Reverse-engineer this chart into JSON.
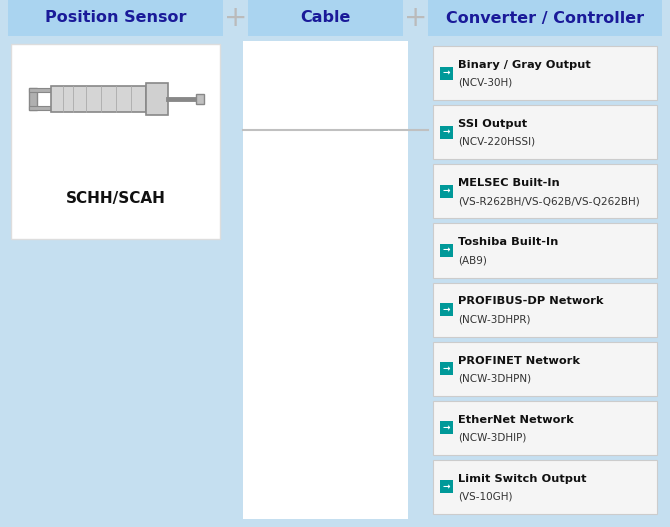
{
  "bg_color": "#c5dff0",
  "col1_bg": "#c5dff0",
  "col2_bg": "#ffffff",
  "col3_bg": "#c5dff0",
  "header_bg": "#aad4f0",
  "header_text_color": "#1a1a99",
  "header_font_size": 11.5,
  "col1_header": "Position Sensor",
  "col2_header": "Cable",
  "col3_header": "Converter / Controller",
  "sensor_label": "SCHH/SCAH",
  "plus_color": "#bbbbbb",
  "white_box_color": "#ffffff",
  "white_box_border": "#cccccc",
  "item_box_bg": "#f5f5f5",
  "item_box_border": "#cccccc",
  "item_icon_bg": "#009999",
  "item_text_color": "#111111",
  "item_subtext_color": "#333333",
  "cable_line_color": "#c0c0c0",
  "fig_w": 6.7,
  "fig_h": 5.27,
  "dpi": 100,
  "items": [
    {
      "line1": "Binary / Gray Output",
      "line2": "(NCV-30H)"
    },
    {
      "line1": "SSI Output",
      "line2": "(NCV-220HSSI)"
    },
    {
      "line1": "MELSEC Built-In",
      "line2": "(VS-R262BH/VS-Q62B/VS-Q262BH)"
    },
    {
      "line1": "Toshiba Built-In",
      "line2": "(AB9)"
    },
    {
      "line1": "PROFIBUS-DP Network",
      "line2": "(NCW-3DHPR)"
    },
    {
      "line1": "PROFINET Network",
      "line2": "(NCW-3DHPN)"
    },
    {
      "line1": "EtherNet Network",
      "line2": "(NCW-3DHIP)"
    },
    {
      "line1": "Limit Switch Output",
      "line2": "(VS-10GH)"
    }
  ]
}
